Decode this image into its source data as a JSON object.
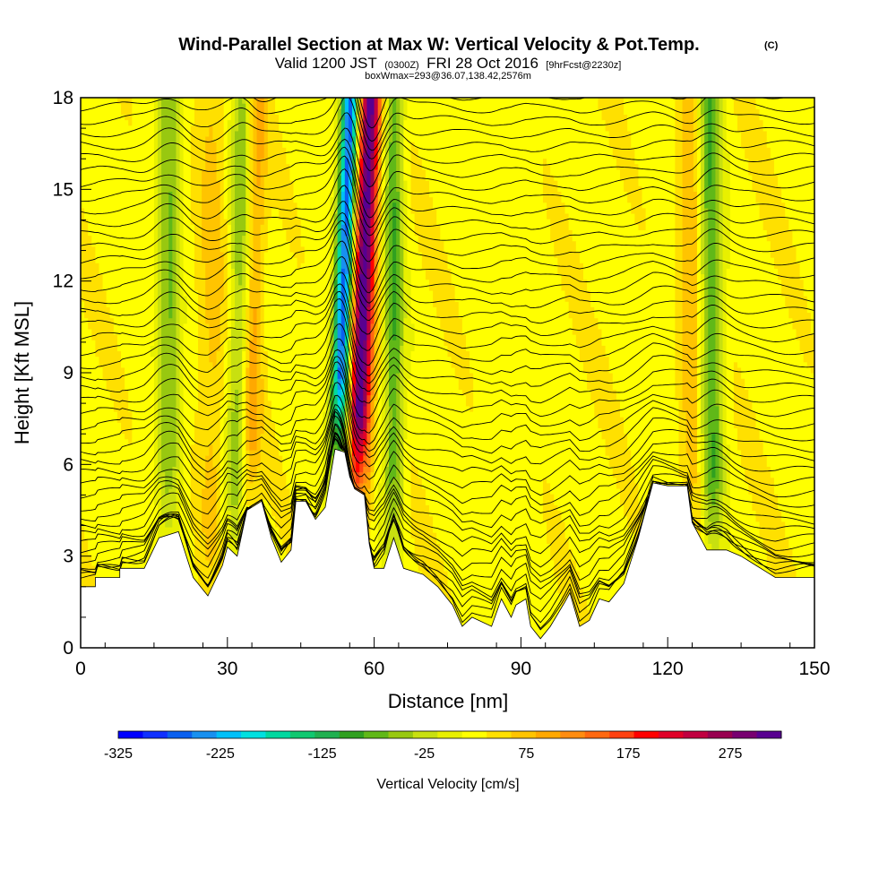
{
  "title": "Wind-Parallel Section at Max W: Vertical Velocity & Pot.Temp.",
  "copyright": "(C)",
  "subtitle": {
    "valid_prefix": "Valid 1200 JST",
    "utc": "(0300Z)",
    "date": "FRI 28 Oct 2016",
    "forecast": "[9hrFcst@2230z]"
  },
  "box_info": "boxWmax=293@36.07,138.42,2576m",
  "colors": {
    "terrain": "#ffffff",
    "contour": "#000000",
    "colorbar": [
      "#0000ff",
      "#1030ff",
      "#0a60f0",
      "#1890f0",
      "#00c0f8",
      "#00e0e0",
      "#00d8a0",
      "#10c870",
      "#20b050",
      "#30a020",
      "#60b818",
      "#98c810",
      "#c8e010",
      "#e8f000",
      "#ffff00",
      "#ffe000",
      "#ffc400",
      "#ffa800",
      "#ff8c10",
      "#ff6810",
      "#ff4010",
      "#ff0000",
      "#e00028",
      "#c00040",
      "#980050",
      "#780070",
      "#580090"
    ]
  },
  "chart_data": {
    "type": "heatmap",
    "xlabel": "Distance [nm]",
    "ylabel": "Height [Kft MSL]",
    "xlim": [
      0,
      150
    ],
    "ylim": [
      0,
      18
    ],
    "xticks": [
      0,
      30,
      60,
      90,
      120,
      150
    ],
    "yticks": [
      0,
      3,
      6,
      9,
      12,
      15,
      18
    ],
    "colorbar": {
      "label": "Vertical Velocity [cm/s]",
      "range": [
        -325,
        325
      ],
      "ticks": [
        -325,
        -225,
        -125,
        -25,
        75,
        175,
        275
      ]
    },
    "terrain_kft": [
      [
        0,
        2.0
      ],
      [
        3,
        2.0
      ],
      [
        3,
        2.3
      ],
      [
        8,
        2.3
      ],
      [
        8,
        2.6
      ],
      [
        13,
        2.6
      ],
      [
        16,
        3.6
      ],
      [
        20,
        3.8
      ],
      [
        23,
        2.3
      ],
      [
        26,
        1.7
      ],
      [
        29,
        2.7
      ],
      [
        30,
        3.3
      ],
      [
        32,
        3.0
      ],
      [
        34,
        4.5
      ],
      [
        37,
        4.8
      ],
      [
        39,
        3.6
      ],
      [
        41,
        2.8
      ],
      [
        43,
        3.2
      ],
      [
        44,
        4.8
      ],
      [
        46,
        4.8
      ],
      [
        48,
        4.2
      ],
      [
        50,
        4.6
      ],
      [
        52,
        6.5
      ],
      [
        54,
        6.4
      ],
      [
        55,
        5.6
      ],
      [
        56,
        5.2
      ],
      [
        58,
        5.0
      ],
      [
        59,
        3.4
      ],
      [
        60,
        2.6
      ],
      [
        62,
        2.6
      ],
      [
        64,
        3.6
      ],
      [
        66,
        2.6
      ],
      [
        70,
        2.4
      ],
      [
        73,
        2.0
      ],
      [
        76,
        1.4
      ],
      [
        78,
        0.7
      ],
      [
        80,
        1.0
      ],
      [
        84,
        0.7
      ],
      [
        86,
        1.6
      ],
      [
        88,
        1.0
      ],
      [
        89,
        1.4
      ],
      [
        91,
        1.6
      ],
      [
        92,
        0.7
      ],
      [
        94,
        0.3
      ],
      [
        96,
        0.7
      ],
      [
        99,
        1.5
      ],
      [
        100,
        1.8
      ],
      [
        102,
        0.7
      ],
      [
        104,
        0.9
      ],
      [
        106,
        1.6
      ],
      [
        108,
        1.5
      ],
      [
        111,
        2.1
      ],
      [
        114,
        3.6
      ],
      [
        117,
        5.4
      ],
      [
        120,
        5.3
      ],
      [
        122,
        5.3
      ],
      [
        124,
        5.3
      ],
      [
        125,
        4.1
      ],
      [
        128,
        3.2
      ],
      [
        130,
        3.2
      ],
      [
        132,
        3.2
      ],
      [
        135,
        3.0
      ],
      [
        138,
        2.7
      ],
      [
        140,
        2.5
      ],
      [
        142,
        2.3
      ],
      [
        150,
        2.3
      ]
    ],
    "w_features": [
      {
        "x": 57,
        "width": 2.2,
        "tilt": 0.22,
        "amplitude": 293
      },
      {
        "x": 53,
        "width": 1.8,
        "tilt": 0.22,
        "amplitude": -300
      },
      {
        "x": 18,
        "width": 2.4,
        "tilt": 0.0,
        "amplitude": -90
      },
      {
        "x": 32,
        "width": 2.2,
        "tilt": 0.12,
        "amplitude": -80
      },
      {
        "x": 35,
        "width": 2.0,
        "tilt": 0.12,
        "amplitude": 70
      },
      {
        "x": 129,
        "width": 2.4,
        "tilt": -0.04,
        "amplitude": -110
      },
      {
        "x": 125,
        "width": 2.2,
        "tilt": -0.04,
        "amplitude": 60
      },
      {
        "x": 27,
        "width": 3.0,
        "tilt": 0.0,
        "amplitude": 40
      },
      {
        "x": 64,
        "width": 2.0,
        "tilt": 0.0,
        "amplitude": -110
      }
    ],
    "contour_levels": 45
  }
}
